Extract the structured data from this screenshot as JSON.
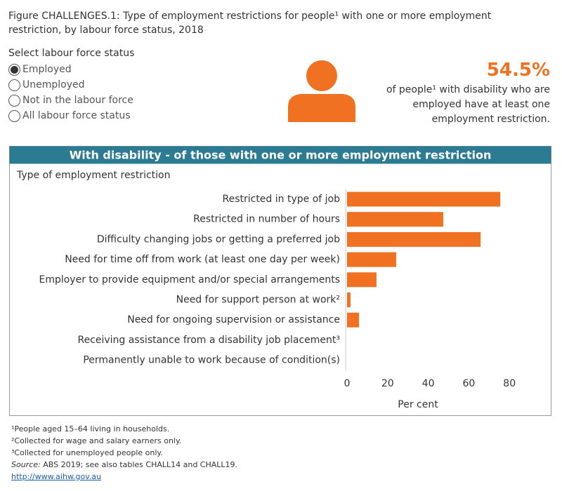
{
  "figure_title": [
    "Figure CHALLENGES.1: Type of employment restrictions for people¹ with one or more employment",
    "restriction, by labour force status, 2018"
  ],
  "filter": {
    "label": "Select labour force status",
    "options": [
      "Employed",
      "Unemployed",
      "Not in the labour force",
      "All labour force status"
    ]
  },
  "headline": {
    "value": "54.5%",
    "lines": [
      "of people¹ with disability who are",
      "employed have at least one",
      "employment restriction."
    ]
  },
  "chart_data": {
    "type": "bar",
    "orientation": "horizontal",
    "title": "With disability - of those with one or more employment restriction",
    "y_label": "Type of employment restriction",
    "x_label": "Per cent",
    "categories": [
      "Restricted in type of job",
      "Restricted in number of hours",
      "Difficulty changing jobs or getting a preferred job",
      "Need for time off from work (at least one day per week)",
      "Employer to provide equipment and/or special arrangements",
      "Need for support person at work²",
      "Need for ongoing supervision or assistance",
      "Receiving assistance from a disability job placement³",
      "Permanently unable to work because of condition(s)"
    ],
    "values": [
      75.5,
      47.4,
      65.8,
      24.2,
      14.5,
      1.7,
      5.9,
      null,
      null
    ],
    "color": "#f07122",
    "header_color": "#2b7b93",
    "xlim": [
      0,
      100
    ],
    "xticks": [
      0,
      20,
      40,
      60,
      80
    ],
    "grid": false
  },
  "footnotes": [
    "¹People aged 15–64 living in households.",
    "²Collected for wage and salary earners only.",
    "³Collected for unemployed people only."
  ],
  "source": {
    "label": "Source:",
    "text": " ABS 2019; see also tables CHALL14 and CHALL19."
  },
  "link": "http://www.aihw.gov.au"
}
